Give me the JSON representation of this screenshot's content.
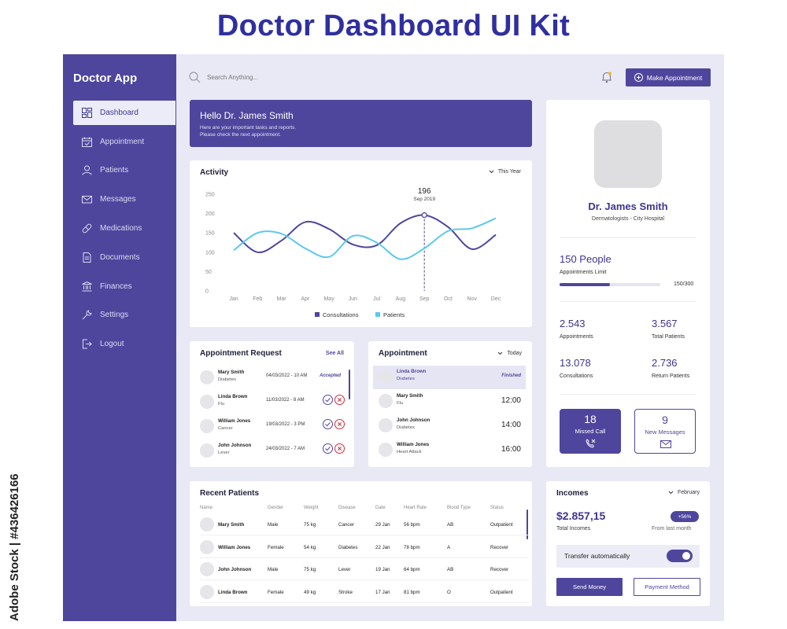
{
  "page_title": "Doctor Dashboard UI Kit",
  "credit": "Adobe Stock | #436426166",
  "brand": "Doctor App",
  "accent": "#4e469d",
  "nav": [
    {
      "label": "Dashboard",
      "icon": "dashboard-icon",
      "active": true
    },
    {
      "label": "Appointment",
      "icon": "calendar-icon"
    },
    {
      "label": "Patients",
      "icon": "user-icon"
    },
    {
      "label": "Messages",
      "icon": "mail-icon"
    },
    {
      "label": "Medications",
      "icon": "pill-icon"
    },
    {
      "label": "Documents",
      "icon": "document-icon"
    },
    {
      "label": "Finances",
      "icon": "bank-icon"
    },
    {
      "label": "Settings",
      "icon": "wrench-icon"
    },
    {
      "label": "Logout",
      "icon": "logout-icon"
    }
  ],
  "topbar": {
    "search_placeholder": "Search Anything...",
    "make_appointment": "Make Appointment"
  },
  "hello": {
    "title": "Hello Dr. James Smith",
    "line1": "Here are your important tasks and reports.",
    "line2": "Please check the next appointment."
  },
  "activity": {
    "title": "Activity",
    "period": "This Year",
    "tooltip_value": "196",
    "tooltip_label": "Sep 2019"
  },
  "chart_data": {
    "type": "line",
    "categories": [
      "Jan",
      "Feb",
      "Mar",
      "Apr",
      "May",
      "Jun",
      "Jul",
      "Aug",
      "Sep",
      "Oct",
      "Nov",
      "Dec"
    ],
    "y_ticks": [
      250,
      200,
      150,
      100,
      50,
      0
    ],
    "ylim": [
      0,
      250
    ],
    "grid": false,
    "legend_position": "bottom",
    "highlight": {
      "category": "Sep",
      "value": 196
    },
    "series": [
      {
        "name": "Consultations",
        "color": "#4e469d",
        "values": [
          150,
          100,
          130,
          178,
          160,
          120,
          118,
          175,
          196,
          165,
          108,
          145
        ]
      },
      {
        "name": "Patients",
        "color": "#5bc8ec",
        "values": [
          105,
          150,
          148,
          110,
          88,
          142,
          125,
          82,
          110,
          155,
          162,
          188
        ]
      }
    ]
  },
  "appointment_request": {
    "title": "Appointment Request",
    "see_all": "See All",
    "rows": [
      {
        "name": "Mary Smith",
        "diag": "Diabetes",
        "date": "04/03/2022 - 10 AM",
        "status": "Accepted"
      },
      {
        "name": "Linda Brown",
        "diag": "Flu",
        "date": "11/03/2022 - 8 AM",
        "status": ""
      },
      {
        "name": "William Jones",
        "diag": "Cancer",
        "date": "19/03/2022 - 3 PM",
        "status": ""
      },
      {
        "name": "John Johnson",
        "diag": "Lever",
        "date": "24/03/2022 - 7 AM",
        "status": ""
      }
    ]
  },
  "appointment": {
    "title": "Appointment",
    "period": "Today",
    "rows": [
      {
        "name": "Linda Brown",
        "diag": "Diabetes",
        "time": "Finished"
      },
      {
        "name": "Mary Smith",
        "diag": "Flu",
        "time": "12:00"
      },
      {
        "name": "John Johnson",
        "diag": "Diabetes",
        "time": "14:00"
      },
      {
        "name": "William Jones",
        "diag": "Heart Attack",
        "time": "16:00"
      }
    ]
  },
  "recent_patients": {
    "title": "Recent Patients",
    "columns": [
      "Name",
      "Gender",
      "Weight",
      "Disease",
      "Date",
      "Heart Rate",
      "Blood Type",
      "Status"
    ],
    "rows": [
      [
        "Mary Smith",
        "Male",
        "75 kg",
        "Cancer",
        "29 Jan",
        "56 bpm",
        "AB",
        "Outpatient"
      ],
      [
        "William Jones",
        "Female",
        "54 kg",
        "Diabetes",
        "22 Jan",
        "78 bpm",
        "A",
        "Recover"
      ],
      [
        "John Johnson",
        "Male",
        "75 kg",
        "Lever",
        "19 Jan",
        "64 bpm",
        "AB",
        "Recover"
      ],
      [
        "Linda Brown",
        "Female",
        "49 kg",
        "Stroke",
        "17 Jan",
        "81 bpm",
        "O",
        "Outpatient"
      ]
    ]
  },
  "profile": {
    "name": "Dr. James Smith",
    "subtitle": "Dermatologists - City Hospital",
    "people": "150 People",
    "limit_label": "Appointments Limit",
    "limit_value": "150/300",
    "limit_fraction": 0.5,
    "stats": [
      {
        "value": "2.543",
        "label": "Appointments"
      },
      {
        "value": "3.567",
        "label": "Total Patients"
      },
      {
        "value": "13.078",
        "label": "Consultations"
      },
      {
        "value": "2.736",
        "label": "Return Patients"
      }
    ],
    "missed_call": {
      "count": "18",
      "label": "Missed Call"
    },
    "new_messages": {
      "count": "9",
      "label": "New Messages"
    }
  },
  "incomes": {
    "title": "Incomes",
    "period": "February",
    "amount": "$2.857,15",
    "amount_label": "Total Incomes",
    "change": "+56%",
    "change_label": "From last month",
    "transfer_label": "Transfer automatically",
    "transfer_on": true,
    "send": "Send Money",
    "payment": "Payment Method"
  }
}
